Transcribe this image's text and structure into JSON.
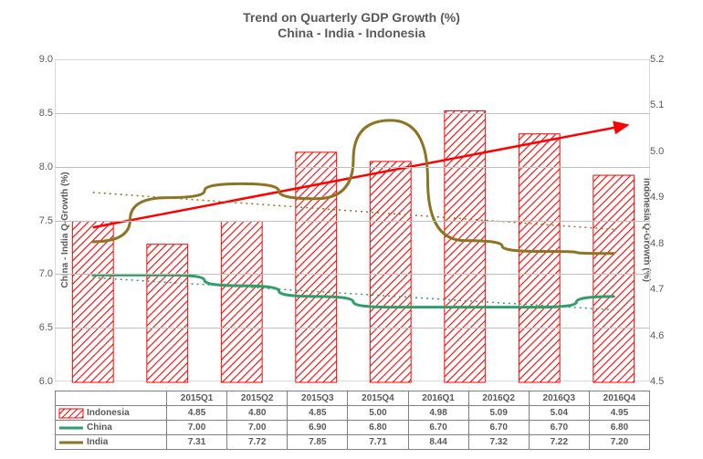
{
  "chart": {
    "title_line1": "Trend on Quarterly GDP Growth (%)",
    "title_line2": "China - India - Indonesia",
    "y1_label": "China - India Q-Growth (%)",
    "y2_label": "Indonesia Q-Growth (%)",
    "y1_min": 6.0,
    "y1_max": 9.0,
    "y1_step": 0.5,
    "y2_min": 4.5,
    "y2_max": 5.2,
    "y2_step": 0.1,
    "categories": [
      "2015Q1",
      "2015Q2",
      "2015Q3",
      "2015Q4",
      "2016Q1",
      "2016Q2",
      "2016Q3",
      "2016Q4"
    ],
    "series": {
      "indonesia": {
        "label": "Indonesia",
        "type": "bar",
        "axis": "y2",
        "values": [
          4.85,
          4.8,
          4.85,
          5.0,
          4.98,
          5.09,
          5.04,
          4.95
        ],
        "fill": "#ffffff",
        "hatch": "#ff0000",
        "border": "#ff0000",
        "trend_color": "#ff0000"
      },
      "china": {
        "label": "China",
        "type": "line",
        "axis": "y1",
        "values": [
          7.0,
          7.0,
          6.9,
          6.8,
          6.7,
          6.7,
          6.7,
          6.8
        ],
        "color": "#2e9e6b",
        "width": 3,
        "trend_color": "#2e9e6b"
      },
      "india": {
        "label": "India",
        "type": "line",
        "axis": "y1",
        "values": [
          7.31,
          7.72,
          7.85,
          7.71,
          8.44,
          7.32,
          7.22,
          7.2
        ],
        "color": "#8d7324",
        "width": 3,
        "trend_color": "#8d7324"
      }
    },
    "plot_bg": "#ffffff",
    "grid_color": "#bfbfbf",
    "text_color": "#595959"
  }
}
